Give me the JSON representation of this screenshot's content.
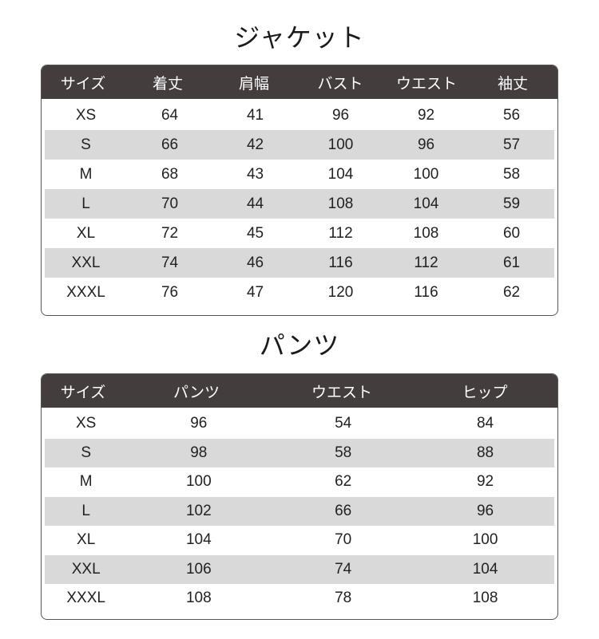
{
  "jacket": {
    "title": "ジャケット",
    "headers": [
      "サイズ",
      "着丈",
      "肩幅",
      "バスト",
      "ウエスト",
      "袖丈"
    ],
    "rows": [
      [
        "XS",
        "64",
        "41",
        "96",
        "92",
        "56"
      ],
      [
        "S",
        "66",
        "42",
        "100",
        "96",
        "57"
      ],
      [
        "M",
        "68",
        "43",
        "104",
        "100",
        "58"
      ],
      [
        "L",
        "70",
        "44",
        "108",
        "104",
        "59"
      ],
      [
        "XL",
        "72",
        "45",
        "112",
        "108",
        "60"
      ],
      [
        "XXL",
        "74",
        "46",
        "116",
        "112",
        "61"
      ],
      [
        "XXXL",
        "76",
        "47",
        "120",
        "116",
        "62"
      ]
    ]
  },
  "pants": {
    "title": "パンツ",
    "headers": [
      "サイズ",
      "パンツ",
      "ウエスト",
      "ヒップ"
    ],
    "rows": [
      [
        "XS",
        "96",
        "54",
        "84"
      ],
      [
        "S",
        "98",
        "58",
        "88"
      ],
      [
        "M",
        "100",
        "62",
        "92"
      ],
      [
        "L",
        "102",
        "66",
        "96"
      ],
      [
        "XL",
        "104",
        "70",
        "100"
      ],
      [
        "XXL",
        "106",
        "74",
        "104"
      ],
      [
        "XXXL",
        "108",
        "78",
        "108"
      ]
    ]
  },
  "colors": {
    "header_bg": "#433d3e",
    "stripe": "#d9d9d9"
  }
}
